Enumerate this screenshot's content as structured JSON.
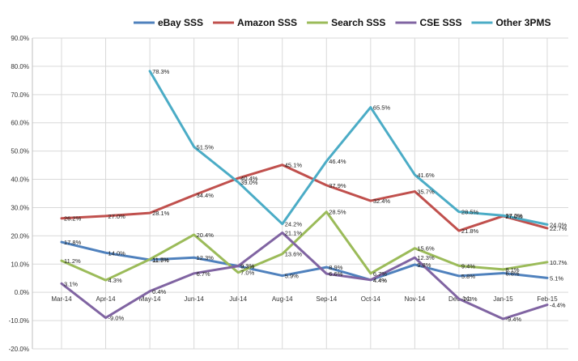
{
  "chart_data": {
    "type": "line",
    "title": "",
    "xlabel": "",
    "ylabel": "",
    "ylim": [
      -20,
      90
    ],
    "ytick_step": 10,
    "y_tick_format": "percent_1dp",
    "grid": true,
    "legend_position": "top",
    "categories": [
      "Mar-14",
      "Apr-14",
      "May-14",
      "Jun-14",
      "Jul-14",
      "Aug-14",
      "Sep-14",
      "Oct-14",
      "Nov-14",
      "Dec-14",
      "Jan-15",
      "Feb-15"
    ],
    "series": [
      {
        "name": "eBay SSS",
        "color": "#4f81bd",
        "values": [
          17.8,
          14.0,
          11.5,
          12.3,
          9.3,
          5.9,
          8.9,
          4.4,
          9.8,
          5.8,
          6.8,
          5.1
        ],
        "labels": [
          "17.8%",
          "14.0%",
          "11.5%",
          "12.3%",
          "9.3%",
          "5.9%",
          "8.9%",
          "4.4%",
          "9.8%",
          "5.8%",
          "6.8%",
          "5.1%"
        ]
      },
      {
        "name": "Amazon SSS",
        "color": "#c0504d",
        "values": [
          26.2,
          27.0,
          28.1,
          34.4,
          40.4,
          45.1,
          37.9,
          32.4,
          35.7,
          21.8,
          27.0,
          22.7
        ],
        "labels": [
          "26.2%",
          "27.0%",
          "28.1%",
          "34.4%",
          "40.4%",
          "45.1%",
          "37.9%",
          "32.4%",
          "35.7%",
          "21.8%",
          "27.0%",
          "22.7%"
        ]
      },
      {
        "name": "Search SSS",
        "color": "#9bbb59",
        "values": [
          11.2,
          4.3,
          11.7,
          20.4,
          7.0,
          13.6,
          28.5,
          6.7,
          15.6,
          9.4,
          8.1,
          10.7
        ],
        "labels": [
          "11.2%",
          "4.3%",
          "11.7%",
          "20.4%",
          "7.0%",
          "13.6%",
          "28.5%",
          "6.7%",
          "15.6%",
          "9.4%",
          "8.1%",
          "10.7%"
        ]
      },
      {
        "name": "CSE SSS",
        "color": "#8064a2",
        "values": [
          3.1,
          -9.0,
          0.4,
          6.7,
          9.3,
          21.1,
          6.6,
          4.4,
          12.3,
          -2.3,
          -9.4,
          -4.4
        ],
        "labels": [
          "3.1%",
          "-9.0%",
          "0.4%",
          "6.7%",
          "9.3%",
          "21.1%",
          "6.6%",
          "4.4%",
          "12.3%",
          "-2.3%",
          "-9.4%",
          "-4.4%"
        ]
      },
      {
        "name": "Other 3PMS",
        "color": "#4bacc6",
        "values": [
          null,
          null,
          78.3,
          51.5,
          39.0,
          24.2,
          46.4,
          65.5,
          41.6,
          28.5,
          27.2,
          24.0
        ],
        "labels": [
          "",
          "",
          "78.3%",
          "51.5%",
          "39.0%",
          "24.2%",
          "46.4%",
          "65.5%",
          "41.6%",
          "28.5%",
          "27.2%",
          "24.0%"
        ]
      }
    ]
  }
}
